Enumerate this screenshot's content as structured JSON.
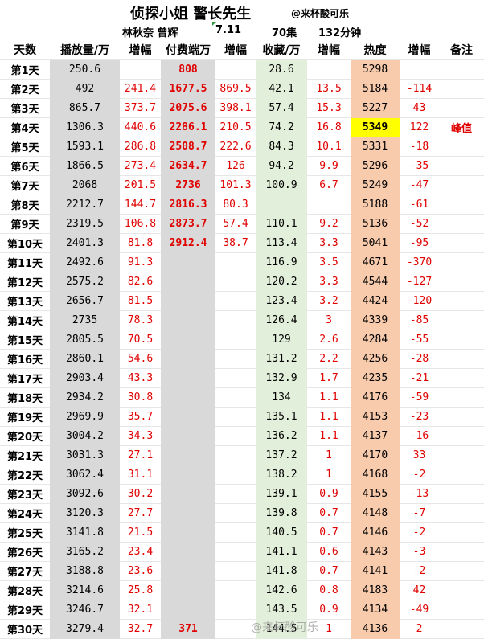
{
  "header": {
    "title": "侦探小姐 警长先生",
    "handle": "@来杯酸可乐",
    "cast": "林秋奈 曾辉",
    "date": "7.11",
    "episodes": "70集",
    "duration": "132分钟"
  },
  "table": {
    "columns": [
      "天数",
      "播放量/万",
      "增幅",
      "付费端万",
      "增幅",
      "收藏/万",
      "增幅",
      "热度",
      "增幅",
      "备注"
    ],
    "rows": [
      [
        "第1天",
        "250.6",
        null,
        "808",
        null,
        "28.6",
        null,
        "5298",
        null,
        null
      ],
      [
        "第2天",
        "492",
        "241.4",
        "1677.5",
        "869.5",
        "42.1",
        "13.5",
        "5184",
        "-114",
        null
      ],
      [
        "第3天",
        "865.7",
        "373.7",
        "2075.6",
        "398.1",
        "57.4",
        "15.3",
        "5227",
        "43",
        null
      ],
      [
        "第4天",
        "1306.3",
        "440.6",
        "2286.1",
        "210.5",
        "74.2",
        "16.8",
        "5349",
        "122",
        "峰值"
      ],
      [
        "第5天",
        "1593.1",
        "286.8",
        "2508.7",
        "222.6",
        "84.3",
        "10.1",
        "5331",
        "-18",
        null
      ],
      [
        "第6天",
        "1866.5",
        "273.4",
        "2634.7",
        "126",
        "94.2",
        "9.9",
        "5296",
        "-35",
        null
      ],
      [
        "第7天",
        "2068",
        "201.5",
        "2736",
        "101.3",
        "100.9",
        "6.7",
        "5249",
        "-47",
        null
      ],
      [
        "第8天",
        "2212.7",
        "144.7",
        "2816.3",
        "80.3",
        null,
        null,
        "5188",
        "-61",
        null
      ],
      [
        "第9天",
        "2319.5",
        "106.8",
        "2873.7",
        "57.4",
        "110.1",
        "9.2",
        "5136",
        "-52",
        null
      ],
      [
        "第10天",
        "2401.3",
        "81.8",
        "2912.4",
        "38.7",
        "113.4",
        "3.3",
        "5041",
        "-95",
        null
      ],
      [
        "第11天",
        "2492.6",
        "91.3",
        null,
        null,
        "116.9",
        "3.5",
        "4671",
        "-370",
        null
      ],
      [
        "第12天",
        "2575.2",
        "82.6",
        null,
        null,
        "120.2",
        "3.3",
        "4544",
        "-127",
        null
      ],
      [
        "第13天",
        "2656.7",
        "81.5",
        null,
        null,
        "123.4",
        "3.2",
        "4424",
        "-120",
        null
      ],
      [
        "第14天",
        "2735",
        "78.3",
        null,
        null,
        "126.4",
        "3",
        "4339",
        "-85",
        null
      ],
      [
        "第15天",
        "2805.5",
        "70.5",
        null,
        null,
        "129",
        "2.6",
        "4284",
        "-55",
        null
      ],
      [
        "第16天",
        "2860.1",
        "54.6",
        null,
        null,
        "131.2",
        "2.2",
        "4256",
        "-28",
        null
      ],
      [
        "第17天",
        "2903.4",
        "43.3",
        null,
        null,
        "132.9",
        "1.7",
        "4235",
        "-21",
        null
      ],
      [
        "第18天",
        "2934.2",
        "30.8",
        null,
        null,
        "134",
        "1.1",
        "4176",
        "-59",
        null
      ],
      [
        "第19天",
        "2969.9",
        "35.7",
        null,
        null,
        "135.1",
        "1.1",
        "4153",
        "-23",
        null
      ],
      [
        "第20天",
        "3004.2",
        "34.3",
        null,
        null,
        "136.2",
        "1.1",
        "4137",
        "-16",
        null
      ],
      [
        "第21天",
        "3031.3",
        "27.1",
        null,
        null,
        "137.2",
        "1",
        "4170",
        "33",
        null
      ],
      [
        "第22天",
        "3062.4",
        "31.1",
        null,
        null,
        "138.2",
        "1",
        "4168",
        "-2",
        null
      ],
      [
        "第23天",
        "3092.6",
        "30.2",
        null,
        null,
        "139.1",
        "0.9",
        "4155",
        "-13",
        null
      ],
      [
        "第24天",
        "3120.3",
        "27.7",
        null,
        null,
        "139.8",
        "0.7",
        "4148",
        "-7",
        null
      ],
      [
        "第25天",
        "3141.8",
        "21.5",
        null,
        null,
        "140.5",
        "0.7",
        "4146",
        "-2",
        null
      ],
      [
        "第26天",
        "3165.2",
        "23.4",
        null,
        null,
        "141.1",
        "0.6",
        "4143",
        "-3",
        null
      ],
      [
        "第27天",
        "3188.8",
        "23.6",
        null,
        null,
        "141.8",
        "0.7",
        "4141",
        "-2",
        null
      ],
      [
        "第28天",
        "3214.6",
        "25.8",
        null,
        null,
        "142.6",
        "0.8",
        "4183",
        "42",
        null
      ],
      [
        "第29天",
        "3246.7",
        "32.1",
        null,
        null,
        "143.5",
        "0.9",
        "4134",
        "-49",
        null
      ],
      [
        "第30天",
        "3279.4",
        "32.7",
        "371",
        null,
        "144.5",
        "1",
        "4136",
        "2",
        null
      ]
    ]
  },
  "watermark": "@来杯酸可乐"
}
